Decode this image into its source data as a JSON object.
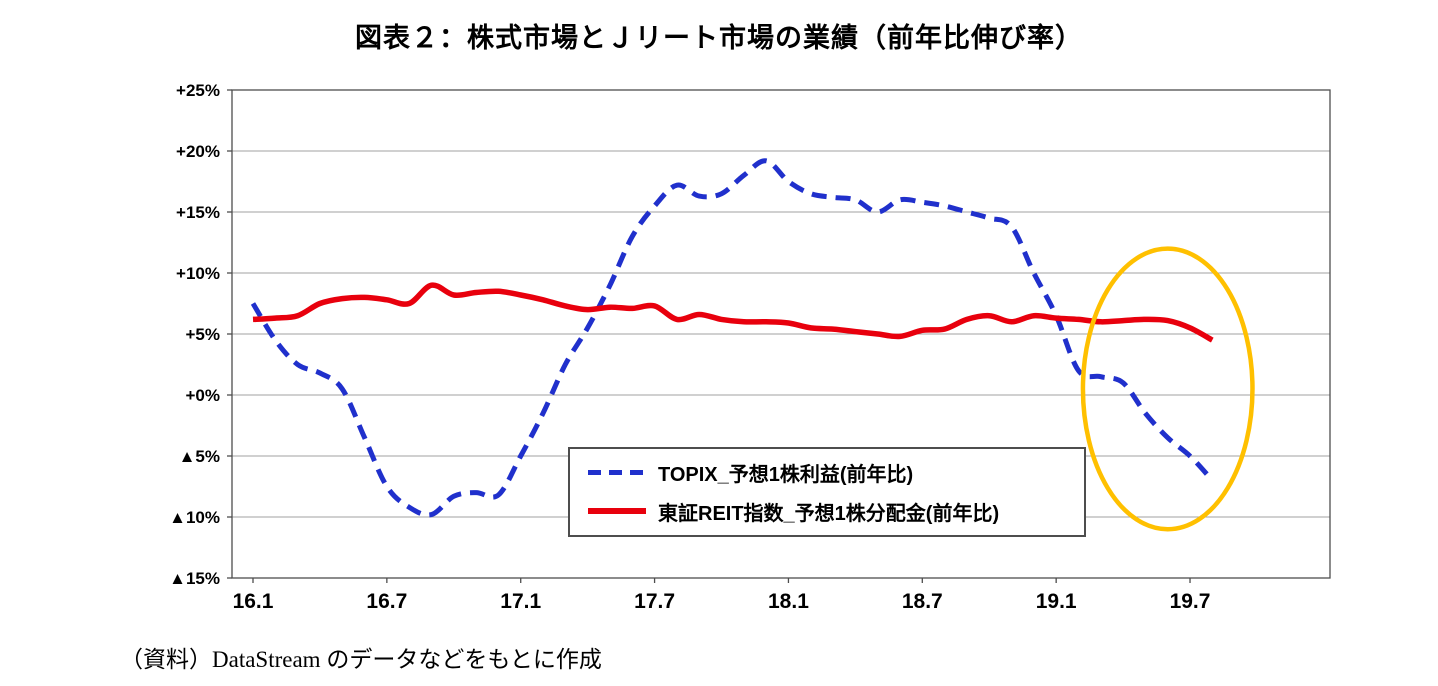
{
  "page": {
    "title": "図表２：株式市場とＪリート市場の業績（前年比伸び率）",
    "source_note": "（資料）DataStream のデータなどをもとに作成"
  },
  "legend": {
    "items": [
      {
        "label": "TOPIX_予想1株利益(前年比)",
        "color": "#2030cc",
        "style": "dashed"
      },
      {
        "label": "東証REIT指数_予想1株分配金(前年比)",
        "color": "#e8000d",
        "style": "solid"
      }
    ]
  },
  "chart_data": {
    "type": "line",
    "title": "図表２：株式市場とＪリート市場の業績（前年比伸び率）",
    "xlabel": "",
    "ylabel": "",
    "ylim": [
      -15,
      25
    ],
    "grid": "horizontal",
    "legend_position": "inside-bottom-center",
    "x": [
      "16.1",
      "16.2",
      "16.3",
      "16.4",
      "16.5",
      "16.6",
      "16.7",
      "16.8",
      "16.9",
      "16.10",
      "16.11",
      "16.12",
      "17.1",
      "17.2",
      "17.3",
      "17.4",
      "17.5",
      "17.6",
      "17.7",
      "17.8",
      "17.9",
      "17.10",
      "17.11",
      "17.12",
      "18.1",
      "18.2",
      "18.3",
      "18.4",
      "18.5",
      "18.6",
      "18.7",
      "18.8",
      "18.9",
      "18.10",
      "18.11",
      "18.12",
      "19.1",
      "19.2",
      "19.3",
      "19.4",
      "19.5",
      "19.6",
      "19.7",
      "19.8"
    ],
    "xticks": {
      "labels": [
        "16.1",
        "16.7",
        "17.1",
        "17.7",
        "18.1",
        "18.7",
        "19.1",
        "19.7"
      ],
      "indices": [
        0,
        6,
        12,
        18,
        24,
        30,
        36,
        42
      ]
    },
    "yticks": {
      "labels": [
        "+25%",
        "+20%",
        "+15%",
        "+10%",
        "+5%",
        "+0%",
        "▲5%",
        "▲10%",
        "▲15%"
      ],
      "values": [
        25,
        20,
        15,
        10,
        5,
        0,
        -5,
        -10,
        -15
      ]
    },
    "series": [
      {
        "name": "TOPIX_予想1株利益(前年比)",
        "color": "#2030cc",
        "line_style": "dashed",
        "values": [
          7.5,
          4.5,
          2.5,
          1.8,
          0.5,
          -3.5,
          -7.5,
          -9.2,
          -9.8,
          -8.3,
          -8.0,
          -8.2,
          -5.0,
          -1.5,
          2.5,
          5.5,
          9.0,
          13.0,
          15.5,
          17.2,
          16.3,
          16.5,
          18.0,
          19.2,
          17.5,
          16.5,
          16.2,
          16.0,
          15.0,
          16.0,
          15.8,
          15.5,
          15.0,
          14.5,
          13.8,
          10.0,
          6.5,
          2.0,
          1.5,
          1.0,
          -1.5,
          -3.5,
          -5.0,
          -7.0
        ]
      },
      {
        "name": "東証REIT指数_予想1株分配金(前年比)",
        "color": "#e8000d",
        "line_style": "solid",
        "values": [
          6.2,
          6.3,
          6.5,
          7.5,
          7.9,
          8.0,
          7.8,
          7.5,
          9.0,
          8.2,
          8.4,
          8.5,
          8.2,
          7.8,
          7.3,
          7.0,
          7.2,
          7.1,
          7.3,
          6.2,
          6.6,
          6.2,
          6.0,
          6.0,
          5.9,
          5.5,
          5.4,
          5.2,
          5.0,
          4.8,
          5.3,
          5.4,
          6.2,
          6.5,
          6.0,
          6.5,
          6.3,
          6.2,
          6.0,
          6.1,
          6.2,
          6.1,
          5.5,
          4.5
        ]
      }
    ],
    "annotation": {
      "shape": "ellipse",
      "description": "highlight of recent period where TOPIX EPS growth turns negative while REIT DPU growth stays positive",
      "color": "#ffc000",
      "center_x_index": 41,
      "center_y_value": 0.5,
      "rx_months": 3.8,
      "ry_percent": 11.5
    }
  }
}
